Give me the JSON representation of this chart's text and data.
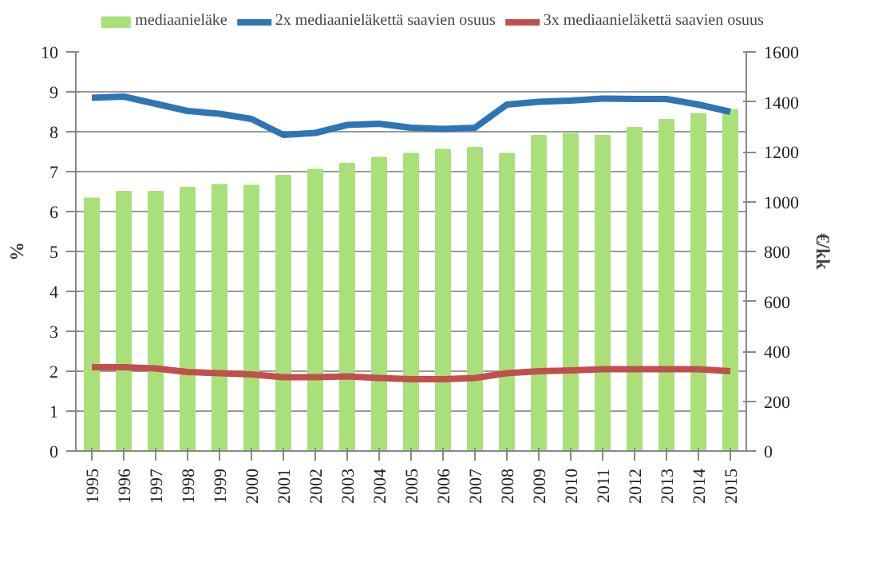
{
  "chart_data": {
    "type": "bar",
    "categories": [
      "1995",
      "1996",
      "1997",
      "1998",
      "1999",
      "2000",
      "2001",
      "2002",
      "2003",
      "2004",
      "2005",
      "2006",
      "2007",
      "2008",
      "2009",
      "2010",
      "2011",
      "2012",
      "2013",
      "2014",
      "2015"
    ],
    "ylabel": "%",
    "y2label": "€/kk",
    "ylim": [
      0,
      10
    ],
    "yticks": [
      0,
      1,
      2,
      3,
      4,
      5,
      6,
      7,
      8,
      9,
      10
    ],
    "y2lim": [
      0,
      1600
    ],
    "y2ticks": [
      0,
      200,
      400,
      600,
      800,
      1000,
      1200,
      1400,
      1600
    ],
    "grid": "y",
    "legend": "top",
    "series": [
      {
        "name": "mediaanieläke",
        "axis": "y2",
        "color": "#a9e07a",
        "values": [
          1013,
          1040,
          1040,
          1056,
          1067,
          1064,
          1104,
          1128,
          1152,
          1176,
          1192,
          1208,
          1216,
          1192,
          1264,
          1272,
          1264,
          1296,
          1328,
          1352,
          1368
        ]
      },
      {
        "name": "2x mediaanieläkettä saavien osuus",
        "type": "line",
        "color": "#2e75b6",
        "values": [
          8.85,
          8.88,
          8.7,
          8.52,
          8.45,
          8.32,
          7.92,
          7.97,
          8.17,
          8.2,
          8.1,
          8.07,
          8.1,
          8.68,
          8.75,
          8.78,
          8.83,
          8.82,
          8.82,
          8.68,
          8.5
        ]
      },
      {
        "name": "3x mediaanieläkettä saavien osuus",
        "type": "line",
        "color": "#c0504d",
        "values": [
          2.1,
          2.1,
          2.07,
          1.98,
          1.95,
          1.92,
          1.85,
          1.85,
          1.87,
          1.83,
          1.8,
          1.8,
          1.83,
          1.95,
          2.0,
          2.02,
          2.05,
          2.05,
          2.05,
          2.05,
          2.0
        ]
      }
    ]
  }
}
